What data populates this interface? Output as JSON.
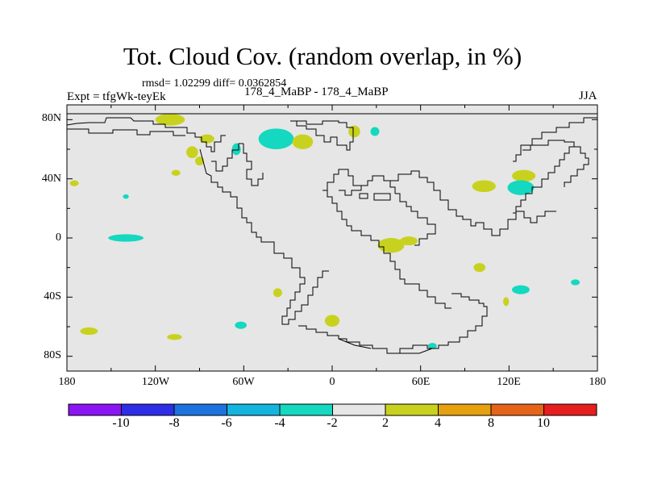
{
  "title": "Tot. Cloud Cov. (random overlap, in %)",
  "stats": "rmsd= 1.02299 diff= 0.0362854",
  "experiment": "Expt = tfgWk-teyEk",
  "case_label": "178_4_MaBP - 178_4_MaBP",
  "season": "JJA",
  "y_ticks": [
    "80N",
    "40N",
    "0",
    "40S",
    "80S"
  ],
  "x_ticks": [
    "180",
    "120W",
    "60W",
    "0",
    "60E",
    "120E",
    "180"
  ],
  "colorbar": {
    "colors": [
      "#8a15f2",
      "#2e2ee6",
      "#1c72de",
      "#14b4de",
      "#14d8c0",
      "#e6e6e6",
      "#c8d21e",
      "#e6a010",
      "#e66419",
      "#e61e1e"
    ],
    "labels": [
      "-10",
      "-8",
      "-6",
      "-4",
      "-2",
      "2",
      "4",
      "8",
      "10"
    ]
  },
  "chart_data": {
    "type": "map",
    "title": "Tot. Cloud Cov. (random overlap, in %)",
    "variable": "Total cloud cover difference",
    "units": "%",
    "lon_range": [
      -180,
      180
    ],
    "lat_range": [
      -90,
      90
    ],
    "contour_levels": [
      -10,
      -8,
      -6,
      -4,
      -2,
      2,
      4,
      8,
      10
    ],
    "background_color": "#e6e6e6",
    "anomalies": [
      {
        "lon": -110,
        "lat": 80,
        "rx": 10,
        "ry": 4,
        "sign": "positive"
      },
      {
        "lon": -85,
        "lat": 67,
        "rx": 5,
        "ry": 3,
        "sign": "positive"
      },
      {
        "lon": -95,
        "lat": 58,
        "rx": 4,
        "ry": 4,
        "sign": "positive"
      },
      {
        "lon": -90,
        "lat": 52,
        "rx": 3,
        "ry": 3,
        "sign": "positive"
      },
      {
        "lon": -65,
        "lat": 60,
        "rx": 3,
        "ry": 4,
        "sign": "negative"
      },
      {
        "lon": -38,
        "lat": 67,
        "rx": 12,
        "ry": 7,
        "sign": "negative"
      },
      {
        "lon": -20,
        "lat": 65,
        "rx": 7,
        "ry": 5,
        "sign": "positive"
      },
      {
        "lon": 15,
        "lat": 72,
        "rx": 4,
        "ry": 4,
        "sign": "positive"
      },
      {
        "lon": 29,
        "lat": 72,
        "rx": 3,
        "ry": 3,
        "sign": "negative"
      },
      {
        "lon": -175,
        "lat": 37,
        "rx": 3,
        "ry": 2,
        "sign": "positive"
      },
      {
        "lon": -140,
        "lat": 28,
        "rx": 2,
        "ry": 1.5,
        "sign": "negative"
      },
      {
        "lon": -106,
        "lat": 44,
        "rx": 3,
        "ry": 2,
        "sign": "positive"
      },
      {
        "lon": -140,
        "lat": 0,
        "rx": 12,
        "ry": 2.5,
        "sign": "negative"
      },
      {
        "lon": 40,
        "lat": -5,
        "rx": 9,
        "ry": 5,
        "sign": "positive"
      },
      {
        "lon": 52,
        "lat": -2,
        "rx": 6,
        "ry": 3,
        "sign": "positive"
      },
      {
        "lon": 103,
        "lat": 35,
        "rx": 8,
        "ry": 4,
        "sign": "positive"
      },
      {
        "lon": 130,
        "lat": 42,
        "rx": 8,
        "ry": 4,
        "sign": "positive"
      },
      {
        "lon": 128,
        "lat": 34,
        "rx": 9,
        "ry": 5,
        "sign": "negative"
      },
      {
        "lon": 100,
        "lat": -20,
        "rx": 4,
        "ry": 3,
        "sign": "positive"
      },
      {
        "lon": 128,
        "lat": -35,
        "rx": 6,
        "ry": 3,
        "sign": "negative"
      },
      {
        "lon": 165,
        "lat": -30,
        "rx": 3,
        "ry": 2,
        "sign": "negative"
      },
      {
        "lon": -37,
        "lat": -37,
        "rx": 3,
        "ry": 3,
        "sign": "positive"
      },
      {
        "lon": 0,
        "lat": -56,
        "rx": 5,
        "ry": 4,
        "sign": "positive"
      },
      {
        "lon": -62,
        "lat": -59,
        "rx": 4,
        "ry": 2.5,
        "sign": "negative"
      },
      {
        "lon": -165,
        "lat": -63,
        "rx": 6,
        "ry": 2.5,
        "sign": "positive"
      },
      {
        "lon": -107,
        "lat": -67,
        "rx": 5,
        "ry": 2,
        "sign": "positive"
      },
      {
        "lon": 68,
        "lat": -73,
        "rx": 3,
        "ry": 2,
        "sign": "negative"
      },
      {
        "lon": 118,
        "lat": -43,
        "rx": 2,
        "ry": 3,
        "sign": "positive"
      }
    ]
  }
}
